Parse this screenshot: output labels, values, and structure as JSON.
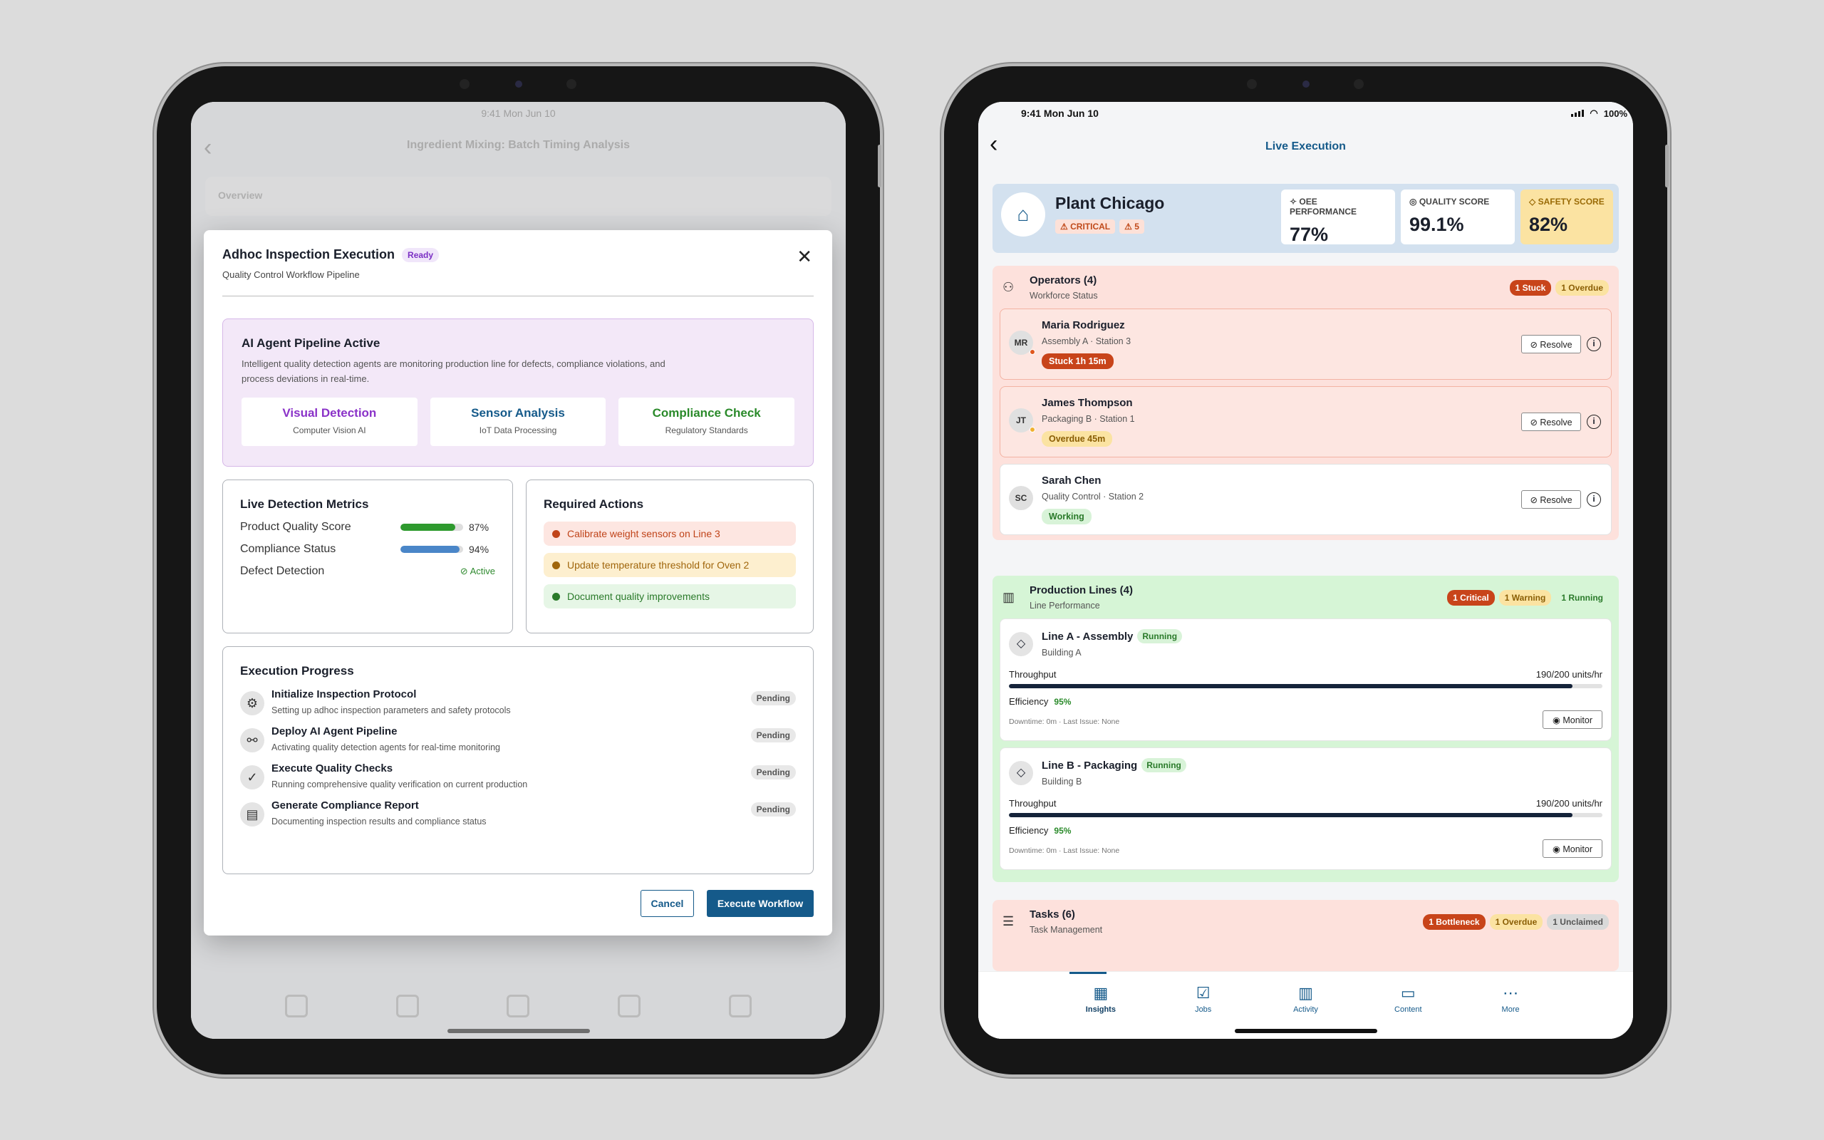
{
  "left_screen": {
    "status_time": "9:41 Mon Jun 10",
    "background_title": "Ingredient Mixing: Batch Timing Analysis",
    "background_overview": "Overview",
    "modal": {
      "title": "Adhoc Inspection Execution",
      "badge": "Ready",
      "subtitle": "Quality Control Workflow Pipeline",
      "ai_panel": {
        "title": "AI Agent Pipeline Active",
        "description": "Intelligent quality detection agents are monitoring production line for defects, compliance violations, and process deviations in real-time.",
        "cards": [
          {
            "title": "Visual Detection",
            "sub": "Computer Vision AI",
            "color": "#8a32c8"
          },
          {
            "title": "Sensor Analysis",
            "sub": "IoT Data Processing",
            "color": "#155a8a"
          },
          {
            "title": "Compliance Check",
            "sub": "Regulatory Standards",
            "color": "#2a8a2a"
          }
        ]
      },
      "metrics": {
        "title": "Live Detection Metrics",
        "items": [
          {
            "label": "Product Quality Score",
            "value": "87%",
            "fill": 0.87,
            "color": "#2e9a2e"
          },
          {
            "label": "Compliance Status",
            "value": "94%",
            "fill": 0.94,
            "color": "#4a86c8"
          }
        ],
        "defect_label": "Defect Detection",
        "defect_status": "Active"
      },
      "actions": {
        "title": "Required Actions",
        "items": [
          {
            "text": "Calibrate weight sensors on Line 3",
            "bg": "#fde6e1",
            "color": "#c0441a"
          },
          {
            "text": "Update temperature threshold for Oven 2",
            "bg": "#fdefcf",
            "color": "#a0660c"
          },
          {
            "text": "Document quality improvements",
            "bg": "#e6f6e6",
            "color": "#2a7a2a"
          }
        ]
      },
      "progress": {
        "title": "Execution Progress",
        "steps": [
          {
            "title": "Initialize Inspection Protocol",
            "sub": "Setting up adhoc inspection parameters and safety protocols",
            "status": "Pending",
            "icon": "gear-icon"
          },
          {
            "title": "Deploy AI Agent Pipeline",
            "sub": "Activating quality detection agents for real-time monitoring",
            "status": "Pending",
            "icon": "agent-icon"
          },
          {
            "title": "Execute Quality Checks",
            "sub": "Running comprehensive quality verification on current production",
            "status": "Pending",
            "icon": "check-circle-icon"
          },
          {
            "title": "Generate Compliance Report",
            "sub": "Documenting inspection results and compliance status",
            "status": "Pending",
            "icon": "clipboard-icon"
          }
        ]
      },
      "cancel_label": "Cancel",
      "execute_label": "Execute Workflow"
    }
  },
  "right_screen": {
    "status_time": "9:41  Mon Jun 10",
    "battery": "100%",
    "title": "Live Execution",
    "plant": {
      "name": "Plant Chicago",
      "critical": "CRITICAL",
      "alerts": "5",
      "kpis": [
        {
          "label": "OEE PERFORMANCE",
          "value": "77%"
        },
        {
          "label": "QUALITY SCORE",
          "value": "99.1%"
        },
        {
          "label": "SAFETY SCORE",
          "value": "82%"
        }
      ]
    },
    "operators": {
      "title": "Operators (4)",
      "sub": "Workforce Status",
      "badges": [
        "1 Stuck",
        "1 Overdue"
      ],
      "items": [
        {
          "initials": "MR",
          "name": "Maria Rodriguez",
          "loc": "Assembly A · Station 3",
          "status": "Stuck 1h 15m",
          "bg": "#fde6e1",
          "border": "#f3b3a3",
          "st_bg": "#c8441a",
          "st_color": "#fff"
        },
        {
          "initials": "JT",
          "name": "James Thompson",
          "loc": "Packaging B · Station 1",
          "status": "Overdue 45m",
          "bg": "#fde6e1",
          "border": "#f3b3a3",
          "st_bg": "#fbe3a2",
          "st_color": "#8a5e05"
        },
        {
          "initials": "SC",
          "name": "Sarah Chen",
          "loc": "Quality Control · Station 2",
          "status": "Working",
          "bg": "#ffffff",
          "border": "#e2e2e2",
          "st_bg": "#d8f3d8",
          "st_color": "#2a7a2a"
        }
      ],
      "resolve_label": "Resolve"
    },
    "lines": {
      "title": "Production Lines (4)",
      "sub": "Line Performance",
      "badges": [
        "1 Critical",
        "1 Warning",
        "1 Running"
      ],
      "items": [
        {
          "name": "Line A - Assembly",
          "status": "Running",
          "building": "Building A",
          "throughput_label": "Throughput",
          "throughput": "190/200 units/hr",
          "fill": 0.95,
          "efficiency_label": "Efficiency",
          "efficiency": "95%",
          "downtime": "Downtime: 0m · Last Issue: None"
        },
        {
          "name": "Line B - Packaging",
          "status": "Running",
          "building": "Building B",
          "throughput_label": "Throughput",
          "throughput": "190/200 units/hr",
          "fill": 0.95,
          "efficiency_label": "Efficiency",
          "efficiency": "95%",
          "downtime": "Downtime: 0m · Last Issue: None"
        }
      ],
      "monitor_label": "Monitor"
    },
    "tasks": {
      "title": "Tasks (6)",
      "sub": "Task Management",
      "badges": [
        "1 Bottleneck",
        "1 Overdue",
        "1 Unclaimed"
      ]
    },
    "tabs": [
      "Insights",
      "Jobs",
      "Activity",
      "Content",
      "More"
    ]
  }
}
